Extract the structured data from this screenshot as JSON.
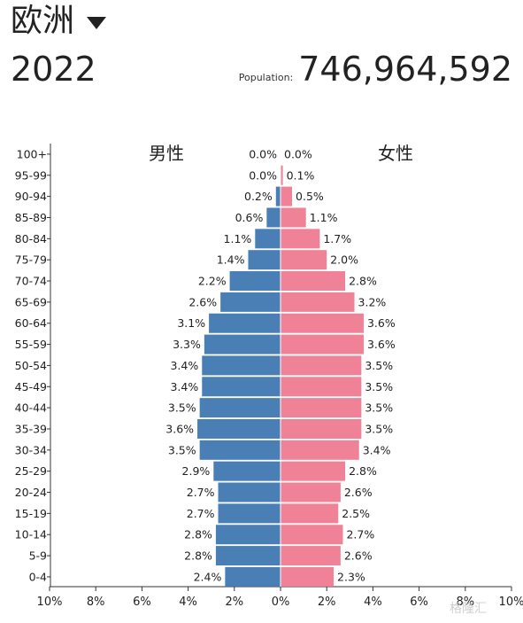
{
  "header": {
    "region": "欧洲",
    "year": "2022",
    "population_label": "Population:",
    "population_value": "746,964,592"
  },
  "watermark": "格隆汇",
  "colors": {
    "male": "#4a7fb5",
    "female": "#ef8296",
    "axis": "#333333",
    "label": "#222222"
  },
  "icons": {
    "dropdown": "caret-down-icon",
    "watermark": "watermark-logo-icon"
  },
  "chart_data": {
    "type": "bar",
    "orientation": "horizontal-mirrored",
    "categories": [
      "100+",
      "95-99",
      "90-94",
      "85-89",
      "80-84",
      "75-79",
      "70-74",
      "65-69",
      "60-64",
      "55-59",
      "50-54",
      "45-49",
      "40-44",
      "35-39",
      "30-34",
      "25-29",
      "20-24",
      "15-19",
      "10-14",
      "5-9",
      "0-4"
    ],
    "series": [
      {
        "name": "男性",
        "side": "left",
        "values": [
          0.0,
          0.0,
          0.2,
          0.6,
          1.1,
          1.4,
          2.2,
          2.6,
          3.1,
          3.3,
          3.4,
          3.4,
          3.5,
          3.6,
          3.5,
          2.9,
          2.7,
          2.7,
          2.8,
          2.8,
          2.4
        ],
        "labels": [
          "0.0%",
          "0.0%",
          "0.2%",
          "0.6%",
          "1.1%",
          "1.4%",
          "2.2%",
          "2.6%",
          "3.1%",
          "3.3%",
          "3.4%",
          "3.4%",
          "3.5%",
          "3.6%",
          "3.5%",
          "2.9%",
          "2.7%",
          "2.7%",
          "2.8%",
          "2.8%",
          "2.4%"
        ]
      },
      {
        "name": "女性",
        "side": "right",
        "values": [
          0.0,
          0.1,
          0.5,
          1.1,
          1.7,
          2.0,
          2.8,
          3.2,
          3.6,
          3.6,
          3.5,
          3.5,
          3.5,
          3.5,
          3.4,
          2.8,
          2.6,
          2.5,
          2.7,
          2.6,
          2.3
        ],
        "labels": [
          "0.0%",
          "0.1%",
          "0.5%",
          "1.1%",
          "1.7%",
          "2.0%",
          "2.8%",
          "3.2%",
          "3.6%",
          "3.6%",
          "3.5%",
          "3.5%",
          "3.5%",
          "3.5%",
          "3.4%",
          "2.8%",
          "2.6%",
          "2.5%",
          "2.7%",
          "2.6%",
          "2.3%"
        ]
      }
    ],
    "xlim": [
      -10,
      10
    ],
    "x_ticks": [
      -10,
      -8,
      -6,
      -4,
      -2,
      0,
      2,
      4,
      6,
      8,
      10
    ],
    "x_tick_labels": [
      "10%",
      "8%",
      "6%",
      "4%",
      "2%",
      "0%",
      "2%",
      "4%",
      "6%",
      "8%",
      "10%"
    ],
    "xlabel": "",
    "ylabel": "",
    "grid": false
  }
}
